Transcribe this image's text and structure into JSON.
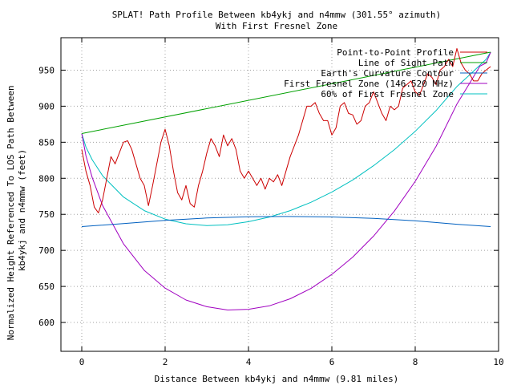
{
  "chart_data": {
    "type": "line",
    "title": "SPLAT! Path Profile Between kb4ykj and n4mmw (301.55° azimuth)",
    "subtitle": "With First Fresnel Zone",
    "xlabel": "Distance Between kb4ykj and n4mmw (9.81 miles)",
    "ylabel": "Normalized Height Referenced To LOS Path Between kb4ykj and n4mmw (feet)",
    "xlim": [
      -0.5,
      10
    ],
    "ylim": [
      560,
      995
    ],
    "xticks": [
      0,
      2,
      4,
      6,
      8,
      10
    ],
    "yticks": [
      600,
      650,
      700,
      750,
      800,
      850,
      900,
      950
    ],
    "grid": true,
    "legend": "top-right",
    "series": [
      {
        "name": "Point-to-Point Profile",
        "color": "#cc0000",
        "x": [
          0,
          0.1,
          0.2,
          0.3,
          0.4,
          0.5,
          0.6,
          0.7,
          0.8,
          0.9,
          1.0,
          1.1,
          1.2,
          1.3,
          1.4,
          1.5,
          1.6,
          1.7,
          1.8,
          1.9,
          2.0,
          2.1,
          2.2,
          2.3,
          2.4,
          2.5,
          2.6,
          2.7,
          2.8,
          2.9,
          3.0,
          3.1,
          3.2,
          3.3,
          3.4,
          3.5,
          3.6,
          3.7,
          3.8,
          3.9,
          4.0,
          4.1,
          4.2,
          4.3,
          4.4,
          4.5,
          4.6,
          4.7,
          4.8,
          4.9,
          5.0,
          5.1,
          5.2,
          5.3,
          5.4,
          5.5,
          5.6,
          5.7,
          5.8,
          5.9,
          6.0,
          6.1,
          6.2,
          6.3,
          6.4,
          6.5,
          6.6,
          6.7,
          6.8,
          6.9,
          7.0,
          7.1,
          7.2,
          7.3,
          7.4,
          7.5,
          7.6,
          7.7,
          7.8,
          7.9,
          8.0,
          8.1,
          8.2,
          8.3,
          8.4,
          8.5,
          8.6,
          8.7,
          8.8,
          8.9,
          9.0,
          9.1,
          9.2,
          9.3,
          9.4,
          9.5,
          9.6,
          9.7,
          9.81
        ],
        "values": [
          840,
          810,
          790,
          760,
          752,
          770,
          800,
          830,
          820,
          835,
          850,
          852,
          840,
          820,
          800,
          790,
          762,
          790,
          820,
          850,
          868,
          845,
          810,
          780,
          770,
          790,
          765,
          760,
          790,
          810,
          835,
          855,
          845,
          830,
          860,
          845,
          855,
          840,
          810,
          800,
          810,
          800,
          790,
          800,
          785,
          800,
          795,
          805,
          790,
          810,
          830,
          845,
          860,
          880,
          900,
          900,
          905,
          890,
          880,
          880,
          860,
          870,
          900,
          905,
          890,
          888,
          875,
          880,
          900,
          905,
          920,
          905,
          890,
          880,
          900,
          895,
          900,
          925,
          930,
          935,
          920,
          915,
          930,
          945,
          940,
          930,
          950,
          955,
          965,
          955,
          980,
          960,
          950,
          945,
          935,
          935,
          945,
          950,
          955
        ]
      },
      {
        "name": "Line of Sight Path",
        "color": "#00a000",
        "x": [
          0,
          9.81
        ],
        "values": [
          862,
          975
        ]
      },
      {
        "name": "Earth's Curvature Contour",
        "color": "#0060c0",
        "x": [
          0,
          1,
          2,
          3,
          4,
          4.9,
          6,
          7,
          8,
          9,
          9.81
        ],
        "values": [
          733,
          737.1,
          741.7,
          744.9,
          746.6,
          747,
          746.4,
          744.4,
          741,
          736.2,
          733
        ]
      },
      {
        "name": "First Fresnel Zone (146.520 MHz)",
        "color": "#a000c0",
        "x": [
          0,
          0.1,
          0.25,
          0.5,
          1,
          1.5,
          2,
          2.5,
          3,
          3.5,
          4,
          4.5,
          5,
          5.5,
          6,
          6.5,
          7,
          7.5,
          8,
          8.5,
          9,
          9.3,
          9.55,
          9.7,
          9.81
        ],
        "values": [
          862,
          831.4,
          801.2,
          762.1,
          709.2,
          672.3,
          647.7,
          631.2,
          621.9,
          617.3,
          618.3,
          623.1,
          632.9,
          647.2,
          666.7,
          690.6,
          719.8,
          754.5,
          795.7,
          844.2,
          902.9,
          931.3,
          955.4,
          960,
          975
        ]
      },
      {
        "name": "60% of First Fresnel Zone",
        "color": "#00c0c0",
        "x": [
          0,
          0.1,
          0.25,
          0.5,
          1,
          1.5,
          2,
          2.5,
          3,
          3.5,
          4,
          4.5,
          5,
          5.5,
          6,
          6.5,
          7,
          7.5,
          8,
          8.5,
          9,
          9.3,
          9.55,
          9.7,
          9.81
        ],
        "values": [
          862,
          843.4,
          825.8,
          803.5,
          774.1,
          755.1,
          743.4,
          736.9,
          734.4,
          735.6,
          739.8,
          746.2,
          755.1,
          766.7,
          781.0,
          797.6,
          817.4,
          839.7,
          865.2,
          893.9,
          927.2,
          943.2,
          956.7,
          965.0,
          975
        ]
      }
    ]
  }
}
